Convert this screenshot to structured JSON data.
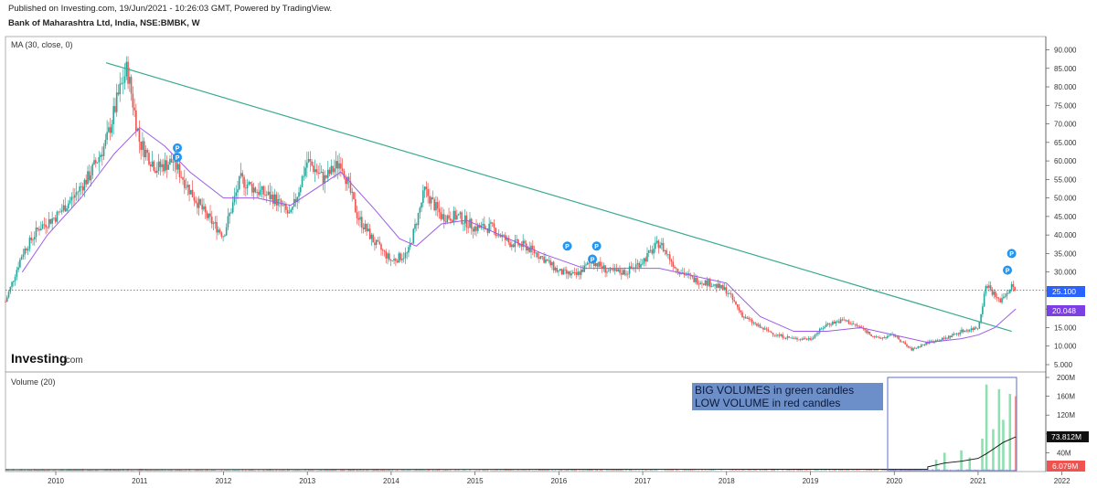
{
  "header": {
    "published": "Published on Investing.com, 19/Jun/2021 - 10:26:03 GMT, Powered by TradingView.",
    "symbol": "Bank of Maharashtra Ltd, India, NSE:BMBK, W"
  },
  "price_pane": {
    "indicator_label": "MA (30, close, 0)",
    "yticks": [
      "90.000",
      "85.000",
      "80.000",
      "75.000",
      "70.000",
      "65.000",
      "60.000",
      "55.000",
      "50.000",
      "45.000",
      "40.000",
      "35.000",
      "30.000",
      "25.000",
      "20.000",
      "15.000",
      "10.000",
      "5.000"
    ],
    "last_price_label": "25.100",
    "ma_label": "20.048",
    "watermark": "Investing",
    "watermark_suffix": ".com",
    "marker_glyph": "P"
  },
  "volume_pane": {
    "indicator_label": "Volume (20)",
    "yticks": [
      "200M",
      "160M",
      "120M",
      "80M",
      "40M"
    ],
    "ma_label": "73.812M",
    "last_label": "6.079M",
    "annotation_line1": "BIG VOLUMES in green candles",
    "annotation_line2": "LOW VOLUME in red candles"
  },
  "xaxis": {
    "ticks": [
      "2010",
      "2011",
      "2012",
      "2013",
      "2014",
      "2015",
      "2016",
      "2017",
      "2018",
      "2019",
      "2020",
      "2021",
      "2022"
    ]
  },
  "colors": {
    "up": "#26a69a",
    "down": "#ef5350",
    "ma": "#9c5ce8",
    "trendline": "#3aaa8e",
    "price_line": "#2962ff",
    "marker": "#2196f3",
    "annotation_bg": "#6d8fc9",
    "annotation_box": "#5b6ec9"
  },
  "chart_data": {
    "type": "candlestick",
    "interval": "weekly",
    "x_range": [
      2009.4,
      2022.2
    ],
    "ylim": [
      3,
      93
    ],
    "price_series": {
      "name": "Bank of Maharashtra Ltd",
      "approx_weekly_close": [
        [
          2009.4,
          22
        ],
        [
          2009.6,
          35
        ],
        [
          2009.8,
          42
        ],
        [
          2010.0,
          45
        ],
        [
          2010.2,
          50
        ],
        [
          2010.4,
          56
        ],
        [
          2010.6,
          65
        ],
        [
          2010.75,
          78
        ],
        [
          2010.85,
          85
        ],
        [
          2011.0,
          65
        ],
        [
          2011.2,
          58
        ],
        [
          2011.4,
          60
        ],
        [
          2011.6,
          52
        ],
        [
          2011.8,
          45
        ],
        [
          2012.0,
          40
        ],
        [
          2012.2,
          55
        ],
        [
          2012.4,
          52
        ],
        [
          2012.6,
          50
        ],
        [
          2012.8,
          45
        ],
        [
          2013.0,
          60
        ],
        [
          2013.2,
          55
        ],
        [
          2013.4,
          60
        ],
        [
          2013.6,
          45
        ],
        [
          2013.8,
          38
        ],
        [
          2014.0,
          33
        ],
        [
          2014.2,
          35
        ],
        [
          2014.4,
          52
        ],
        [
          2014.6,
          45
        ],
        [
          2014.8,
          45
        ],
        [
          2015.0,
          42
        ],
        [
          2015.2,
          42
        ],
        [
          2015.4,
          38
        ],
        [
          2015.6,
          37
        ],
        [
          2015.8,
          34
        ],
        [
          2016.0,
          30
        ],
        [
          2016.2,
          29
        ],
        [
          2016.4,
          33
        ],
        [
          2016.6,
          30
        ],
        [
          2016.8,
          30
        ],
        [
          2017.0,
          33
        ],
        [
          2017.2,
          38
        ],
        [
          2017.4,
          31
        ],
        [
          2017.6,
          28
        ],
        [
          2017.8,
          27
        ],
        [
          2018.0,
          25
        ],
        [
          2018.2,
          18
        ],
        [
          2018.4,
          15
        ],
        [
          2018.6,
          13
        ],
        [
          2018.8,
          12
        ],
        [
          2019.0,
          12
        ],
        [
          2019.2,
          16
        ],
        [
          2019.4,
          17
        ],
        [
          2019.6,
          15
        ],
        [
          2019.8,
          12
        ],
        [
          2020.0,
          13
        ],
        [
          2020.2,
          9
        ],
        [
          2020.4,
          11
        ],
        [
          2020.6,
          12
        ],
        [
          2020.8,
          14
        ],
        [
          2021.0,
          15
        ],
        [
          2021.1,
          27
        ],
        [
          2021.25,
          22
        ],
        [
          2021.4,
          26
        ],
        [
          2021.45,
          25.1
        ]
      ],
      "last_close": 25.1
    },
    "ma_series": {
      "name": "MA (30, close, 0)",
      "approx": [
        [
          2009.6,
          30
        ],
        [
          2009.9,
          40
        ],
        [
          2010.3,
          50
        ],
        [
          2010.7,
          62
        ],
        [
          2011.0,
          69
        ],
        [
          2011.3,
          64
        ],
        [
          2011.6,
          57
        ],
        [
          2012.0,
          50
        ],
        [
          2012.4,
          50
        ],
        [
          2012.8,
          48
        ],
        [
          2013.2,
          54
        ],
        [
          2013.4,
          57
        ],
        [
          2013.8,
          47
        ],
        [
          2014.1,
          39
        ],
        [
          2014.3,
          37
        ],
        [
          2014.6,
          43
        ],
        [
          2014.9,
          44
        ],
        [
          2015.3,
          40
        ],
        [
          2015.8,
          35
        ],
        [
          2016.3,
          31
        ],
        [
          2016.8,
          31
        ],
        [
          2017.2,
          31
        ],
        [
          2017.6,
          29
        ],
        [
          2018.0,
          27
        ],
        [
          2018.4,
          18
        ],
        [
          2018.8,
          14
        ],
        [
          2019.2,
          14
        ],
        [
          2019.6,
          15
        ],
        [
          2020.0,
          13
        ],
        [
          2020.4,
          11
        ],
        [
          2020.8,
          12
        ],
        [
          2021.0,
          13
        ],
        [
          2021.2,
          15
        ],
        [
          2021.45,
          20.048
        ]
      ],
      "last": 20.048
    },
    "trendline": {
      "from": [
        2010.6,
        86.5
      ],
      "to": [
        2021.4,
        14
      ]
    },
    "p_markers": [
      [
        2011.45,
        63.5
      ],
      [
        2011.45,
        61
      ],
      [
        2016.1,
        37
      ],
      [
        2016.45,
        37
      ],
      [
        2016.4,
        33.5
      ],
      [
        2021.4,
        35
      ],
      [
        2021.35,
        30.5
      ]
    ],
    "volume": {
      "ylim": [
        0,
        210
      ],
      "unit": "M",
      "ma_last": 73.812,
      "last": 6.079,
      "highlights_2021": [
        [
          2020.5,
          25,
          "up"
        ],
        [
          2020.6,
          40,
          "up"
        ],
        [
          2020.8,
          45,
          "up"
        ],
        [
          2020.9,
          30,
          "up"
        ],
        [
          2021.05,
          70,
          "up"
        ],
        [
          2021.1,
          185,
          "up"
        ],
        [
          2021.18,
          90,
          "up"
        ],
        [
          2021.25,
          175,
          "up"
        ],
        [
          2021.3,
          110,
          "up"
        ],
        [
          2021.38,
          165,
          "up"
        ],
        [
          2021.45,
          160,
          "down"
        ]
      ]
    }
  }
}
